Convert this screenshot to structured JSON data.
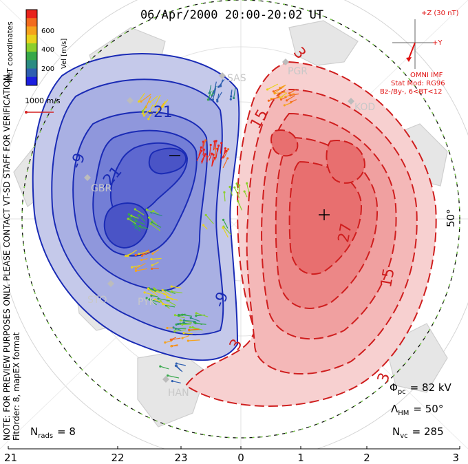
{
  "title": "06/Apr/2000 20:00-20:02 UT",
  "colorbar": {
    "label": "Vel [m/s]",
    "ticks": [
      "600",
      "400",
      "200"
    ],
    "colors": [
      "#e8231d",
      "#f26b1e",
      "#f5a21d",
      "#e9d21d",
      "#8ccf2c",
      "#37a84a",
      "#2b8b82",
      "#2e5fb0",
      "#1b1ee0"
    ]
  },
  "coord_label": "MLT coordinates",
  "scale_vector": "1000 m/s",
  "imf": {
    "z_label": "+Z (30 nT)",
    "y_label": "+Y",
    "source": "OMNI IMF",
    "model": "Stat Mod: RG96",
    "bin": "Bz-/By-, 6<BT<12"
  },
  "notes": {
    "preview": "NOTE: FOR PREVIEW PURPOSES ONLY. PLEASE CONTACT VT-SD STAFF FOR VERIFICATION.",
    "fit": "FitOrder: 8, mapEX format"
  },
  "stats": {
    "nrads_label": "N",
    "nrads_sub": "rads",
    "nrads_value": "= 8",
    "phi_label": "Φ",
    "phi_sub": "pc",
    "phi_value": "= 82 kV",
    "lambda_label": "Λ",
    "lambda_sub": "HM",
    "lambda_value": "= 50°",
    "nvc_label": "N",
    "nvc_sub": "vc",
    "nvc_value": "= 285"
  },
  "lat_label": "50°",
  "mlt_ticks": [
    "21",
    "22",
    "23",
    "0",
    "1",
    "2",
    "3"
  ],
  "stations": [
    "SAS",
    "PGR",
    "KOD",
    "GBR",
    "STO",
    "PYK",
    "HAN"
  ],
  "contours": {
    "negative_labels": [
      "-21",
      "-9",
      "-21",
      "-9"
    ],
    "positive_labels": [
      "3",
      "15",
      "27",
      "15",
      "3"
    ]
  },
  "colors": {
    "negative_fill": "#b9bfe6",
    "negative_line": "#1a2bb5",
    "positive_fill": "#f5c4c4",
    "positive_line": "#cf1e1e",
    "land": "#e3e3e3",
    "imf_red": "#e01010"
  }
}
